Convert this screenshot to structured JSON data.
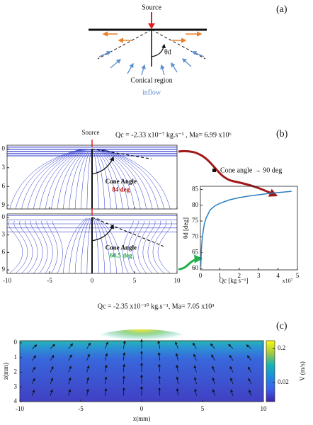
{
  "panel_a": {
    "label": "(a)",
    "source": "Source",
    "angle_label": "θd",
    "region": "Conical region",
    "inflow": "inflow"
  },
  "panel_b": {
    "label": "(b)",
    "source": "Source",
    "top_caption": "Qc = -2.33 x10⁻⁷ kg.s⁻¹ , Ma= 6.99 x10⁶",
    "bottom_caption": "Qc = -2.35 x10⁻¹⁰ kg.s⁻¹, Ma= 7.05 x10³",
    "streamlines": {
      "xlim": [
        -10,
        10
      ],
      "xticks": [
        -10,
        -5,
        0,
        5,
        10
      ],
      "ylim": [
        -0.6,
        9.6
      ],
      "yticks": [
        0,
        3,
        6,
        9
      ]
    },
    "top_cone": {
      "title": "Cone Angle",
      "value": "84 deg"
    },
    "bottom_cone": {
      "title": "Cone Angle",
      "value": "60.5 deg"
    }
  },
  "panel_c": {
    "label": "(c)"
  },
  "chart_data": [
    {
      "type": "line",
      "xlabel": "Qc  [kg s⁻¹]",
      "x_multiplier": "x10⁷",
      "ylabel": "θd [deg]",
      "x": [
        0.02,
        0.05,
        0.1,
        0.2,
        0.3,
        0.5,
        0.75,
        1,
        1.5,
        2,
        2.5,
        3,
        3.5,
        4,
        4.7
      ],
      "series": [
        {
          "name": "Cone angle → 90 deg",
          "color": "#2a7fc0",
          "values": [
            60.5,
            66,
            70,
            74,
            76,
            78.5,
            79.8,
            80.6,
            81.7,
            82.4,
            82.9,
            83.3,
            83.7,
            84,
            84.4
          ]
        }
      ],
      "xlim": [
        0,
        5
      ],
      "xticks": [
        0,
        1,
        2,
        3,
        4,
        5
      ],
      "ylim": [
        59.5,
        86
      ],
      "yticks": [
        60,
        65,
        70,
        75,
        80,
        85
      ]
    },
    {
      "type": "heatmap",
      "xlabel": "x(mm)",
      "ylabel": "z(mm)",
      "xlim": [
        -10,
        10
      ],
      "xticks": [
        -10,
        -5,
        0,
        5,
        10
      ],
      "ylim": [
        -0.15,
        4
      ],
      "yticks": [
        0,
        1,
        2,
        3,
        4
      ],
      "colorbar": {
        "label": "V (m/s)",
        "log": true,
        "lim": [
          0.0055,
          0.34
        ],
        "ticks": [
          0.2,
          0.02
        ]
      }
    }
  ]
}
